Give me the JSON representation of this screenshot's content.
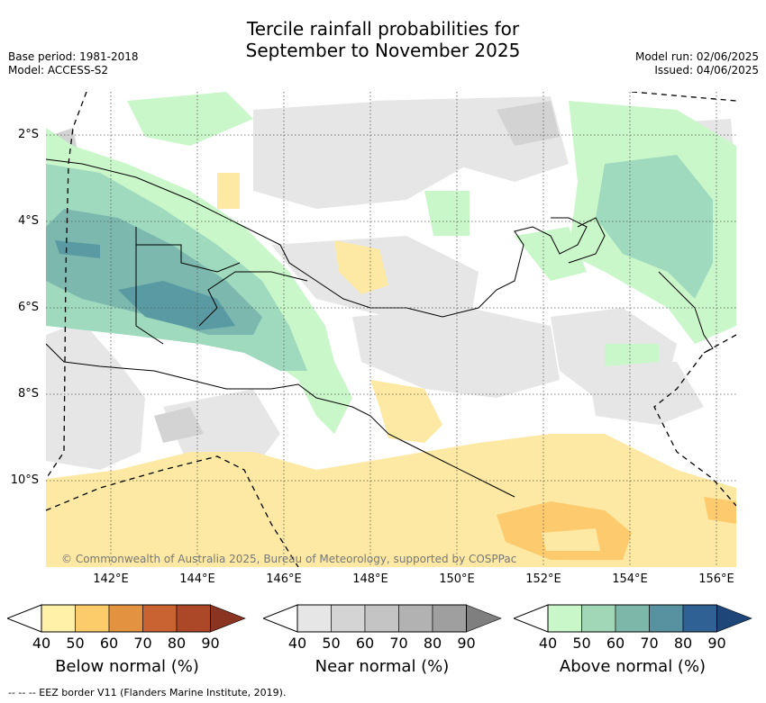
{
  "title_line1": "Tercile rainfall probabilities for",
  "title_line2": "September to November 2025",
  "meta_left": {
    "base_period": "Base period: 1981-2018",
    "model": "Model: ACCESS-S2"
  },
  "meta_right": {
    "model_run": "Model run: 02/06/2025",
    "issued": "Issued: 04/06/2025"
  },
  "map": {
    "lat_labels": [
      "2°S",
      "4°S",
      "6°S",
      "8°S",
      "10°S"
    ],
    "lon_labels": [
      "142°E",
      "144°E",
      "146°E",
      "148°E",
      "150°E",
      "152°E",
      "154°E",
      "156°E"
    ],
    "copyright": "© Commonwealth of Australia 2025, Bureau of Meteorology, supported by COSPPac",
    "colors": {
      "gridline": "#555555",
      "coast": "#000000",
      "near_normal_40": "#e6e6e6",
      "near_normal_50": "#d3d3d3",
      "below_40": "#fde9a3",
      "below_50": "#fdcb6e",
      "above_40": "#c9f7c9",
      "above_50": "#9fd9be",
      "above_60": "#7cb8ad",
      "above_70": "#5a9ba3"
    }
  },
  "colorbars": [
    {
      "title": "Below normal (%)",
      "ticks": [
        "40",
        "50",
        "60",
        "70",
        "80",
        "90"
      ],
      "colors": [
        "#fff1a8",
        "#fccb6a",
        "#e3923f",
        "#c96332",
        "#ac4827",
        "#8b3422"
      ]
    },
    {
      "title": "Near normal (%)",
      "ticks": [
        "40",
        "50",
        "60",
        "70",
        "80",
        "90"
      ],
      "colors": [
        "#e6e6e6",
        "#d4d4d4",
        "#c4c4c4",
        "#b2b2b2",
        "#9f9f9f",
        "#7f7f7f"
      ]
    },
    {
      "title": "Above normal (%)",
      "ticks": [
        "40",
        "50",
        "60",
        "70",
        "80",
        "90"
      ],
      "colors": [
        "#c9f7c9",
        "#a1d7b7",
        "#7db7a9",
        "#5891a0",
        "#2f6195",
        "#1f4679"
      ]
    }
  ],
  "footer": "--  --  -- EEZ border V11 (Flanders Marine Institute, 2019)."
}
